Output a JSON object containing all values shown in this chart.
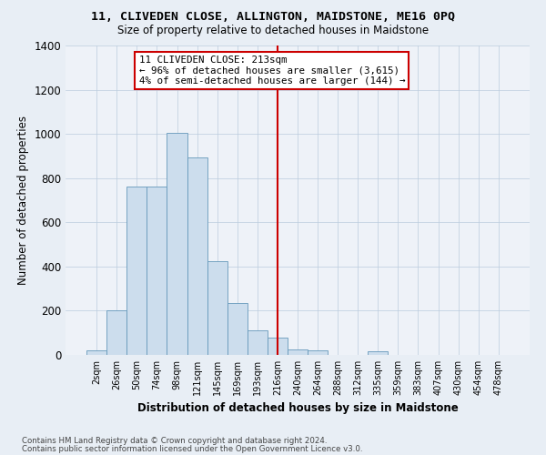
{
  "title": "11, CLIVEDEN CLOSE, ALLINGTON, MAIDSTONE, ME16 0PQ",
  "subtitle": "Size of property relative to detached houses in Maidstone",
  "xlabel": "Distribution of detached houses by size in Maidstone",
  "ylabel": "Number of detached properties",
  "bar_labels": [
    "2sqm",
    "26sqm",
    "50sqm",
    "74sqm",
    "98sqm",
    "121sqm",
    "145sqm",
    "169sqm",
    "193sqm",
    "216sqm",
    "240sqm",
    "264sqm",
    "288sqm",
    "312sqm",
    "335sqm",
    "359sqm",
    "383sqm",
    "407sqm",
    "430sqm",
    "454sqm",
    "478sqm"
  ],
  "bar_values": [
    20,
    200,
    760,
    760,
    1005,
    895,
    425,
    235,
    110,
    80,
    25,
    20,
    0,
    0,
    15,
    0,
    0,
    0,
    0,
    0,
    0
  ],
  "bar_color": "#ccdded",
  "bar_edge_color": "#6699bb",
  "vline_x": 9.0,
  "vline_color": "#cc0000",
  "annotation_text": "11 CLIVEDEN CLOSE: 213sqm\n← 96% of detached houses are smaller (3,615)\n4% of semi-detached houses are larger (144) →",
  "annotation_box_color": "#ffffff",
  "annotation_box_edge": "#cc0000",
  "ylim": [
    0,
    1400
  ],
  "yticks": [
    0,
    200,
    400,
    600,
    800,
    1000,
    1200,
    1400
  ],
  "bg_color": "#e8eef5",
  "plot_bg_color": "#eef2f8",
  "footer1": "Contains HM Land Registry data © Crown copyright and database right 2024.",
  "footer2": "Contains public sector information licensed under the Open Government Licence v3.0."
}
